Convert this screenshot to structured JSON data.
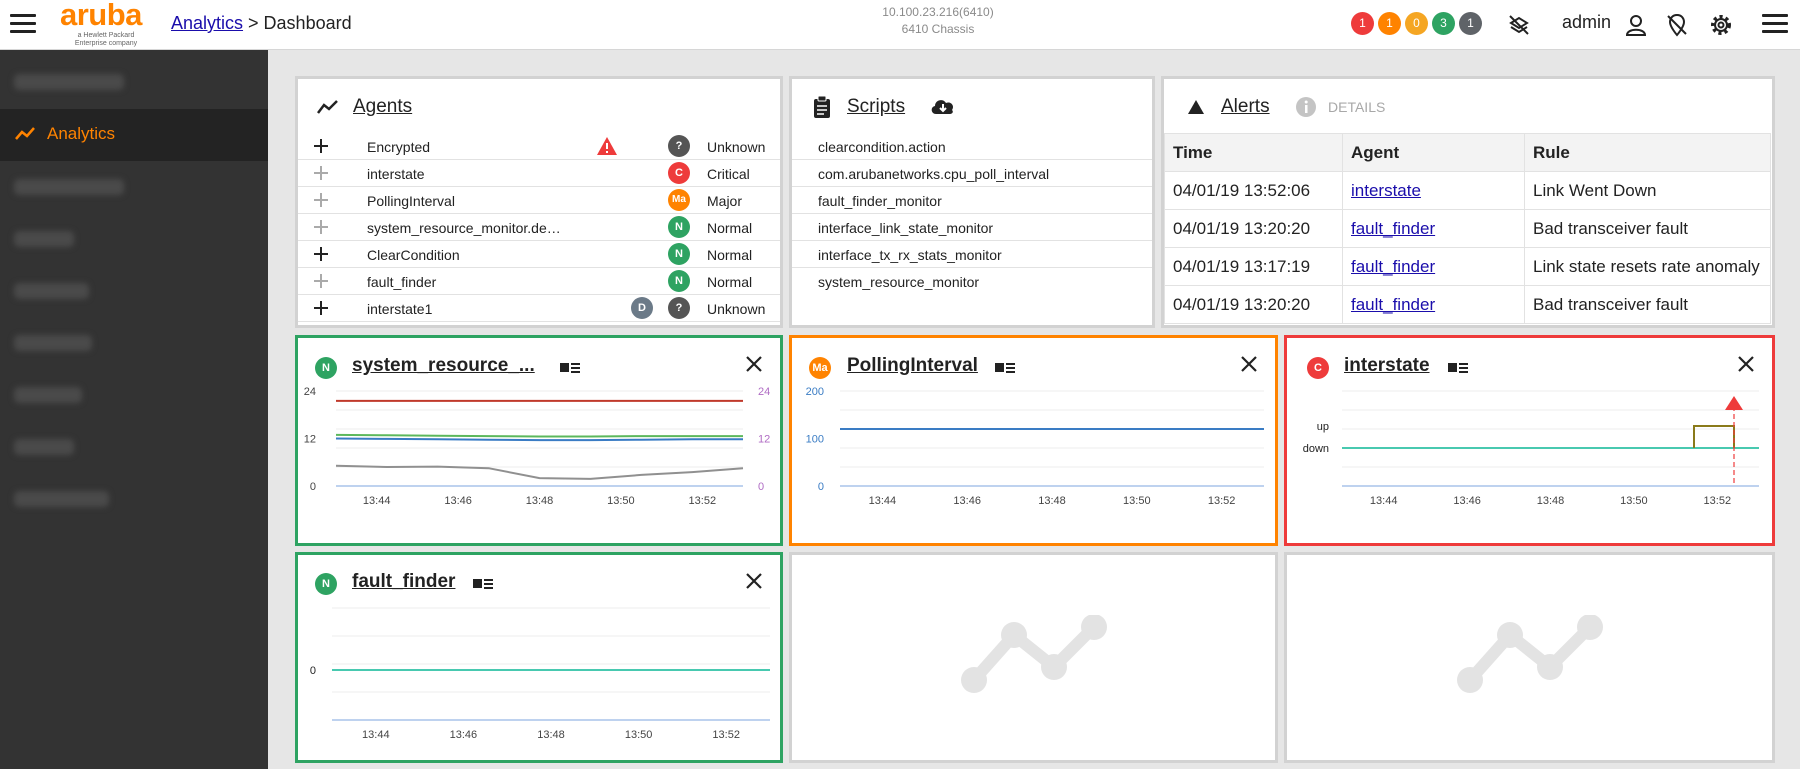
{
  "topbar": {
    "logo": {
      "word": "aruba",
      "sub1": "a Hewlett Packard",
      "sub2": "Enterprise company"
    },
    "breadcrumb": {
      "link": "Analytics",
      "separator": " > ",
      "current": "Dashboard"
    },
    "device": {
      "ip": "10.100.23.216(6410)",
      "chassis": "6410 Chassis"
    },
    "badges": [
      {
        "count": "1",
        "color": "#ee3b3b"
      },
      {
        "count": "1",
        "color": "#ff8300"
      },
      {
        "count": "0",
        "color": "#f5a623"
      },
      {
        "count": "3",
        "color": "#2ea362"
      },
      {
        "count": "1",
        "color": "#5f6368"
      }
    ],
    "user": "admin"
  },
  "sidebar": {
    "active_label": "Analytics"
  },
  "agents": {
    "title": "Agents",
    "rows": [
      {
        "name": "Encrypted",
        "status": "Unknown",
        "circle": "?",
        "circle_color": "#555555",
        "warn": true,
        "extra": ""
      },
      {
        "name": "interstate",
        "status": "Critical",
        "circle": "C",
        "circle_color": "#ee3b3b",
        "warn": false,
        "extra": ""
      },
      {
        "name": "PollingInterval",
        "status": "Major",
        "circle": "Ma",
        "circle_color": "#ff8300",
        "warn": false,
        "extra": ""
      },
      {
        "name": "system_resource_monitor.de…",
        "status": "Normal",
        "circle": "N",
        "circle_color": "#2ea362",
        "warn": false,
        "extra": ""
      },
      {
        "name": "ClearCondition",
        "status": "Normal",
        "circle": "N",
        "circle_color": "#2ea362",
        "warn": false,
        "extra": ""
      },
      {
        "name": "fault_finder",
        "status": "Normal",
        "circle": "N",
        "circle_color": "#2ea362",
        "warn": false,
        "extra": ""
      },
      {
        "name": "interstate1",
        "status": "Unknown",
        "circle": "?",
        "circle_color": "#555555",
        "warn": false,
        "extra": "D"
      }
    ]
  },
  "scripts": {
    "title": "Scripts",
    "items": [
      "clearcondition.action",
      "com.arubanetworks.cpu_poll_interval",
      "fault_finder_monitor",
      "interface_link_state_monitor",
      "interface_tx_rx_stats_monitor",
      "system_resource_monitor"
    ]
  },
  "alerts": {
    "title": "Alerts",
    "details_label": "DETAILS",
    "columns": [
      "Time",
      "Agent",
      "Rule"
    ],
    "rows": [
      [
        "04/01/19 13:52:06",
        "interstate",
        "Link Went Down"
      ],
      [
        "04/01/19 13:20:20",
        "fault_finder",
        "Bad transceiver fault"
      ],
      [
        "04/01/19 13:17:19",
        "fault_finder",
        "Link state resets rate anomaly"
      ],
      [
        "04/01/19 13:20:20",
        "fault_finder",
        "Bad transceiver fault"
      ]
    ]
  },
  "chart_data": [
    {
      "type": "line",
      "title": "system_resource_...",
      "status": "N",
      "x_ticks": [
        "13:44",
        "13:46",
        "13:48",
        "13:50",
        "13:52"
      ],
      "y_ticks_left": [
        "24",
        "12",
        "0"
      ],
      "y_ticks_right": [
        "24",
        "12",
        "0"
      ],
      "ylim": [
        0,
        24
      ],
      "series": [
        {
          "color": "#c0392b",
          "values": [
            21.5,
            21.5,
            21.5,
            21.5,
            21.5,
            21.5,
            21.5,
            21.5,
            21.5
          ]
        },
        {
          "color": "#5cb85c",
          "values": [
            12.9,
            12.8,
            12.7,
            12.6,
            12.5,
            12.5,
            12.6,
            12.6,
            12.6
          ]
        },
        {
          "color": "#3a7cc4",
          "values": [
            12.0,
            11.9,
            11.8,
            11.7,
            11.6,
            11.6,
            11.7,
            11.8,
            11.8
          ]
        },
        {
          "color": "#909090",
          "values": [
            5.1,
            4.8,
            4.9,
            4.5,
            2.0,
            1.8,
            2.8,
            3.5,
            4.5
          ]
        }
      ]
    },
    {
      "type": "line",
      "title": "PollingInterval",
      "status": "Ma",
      "x_ticks": [
        "13:44",
        "13:46",
        "13:48",
        "13:50",
        "13:52"
      ],
      "y_ticks_left": [
        "200",
        "100",
        "0"
      ],
      "ylim": [
        0,
        200
      ],
      "series": [
        {
          "color": "#3a7cc4",
          "values": [
            120,
            120,
            120,
            120,
            120,
            120,
            120,
            120,
            120
          ]
        }
      ]
    },
    {
      "type": "line",
      "title": "interstate",
      "status": "C",
      "x_ticks": [
        "13:44",
        "13:46",
        "13:48",
        "13:50",
        "13:52"
      ],
      "y_ticks_left": [
        "up",
        "down"
      ],
      "series": [
        {
          "color": "#48c9b0",
          "values": [
            "down",
            "down",
            "down",
            "down",
            "down",
            "down",
            "down",
            "down",
            "down"
          ]
        },
        {
          "color": "#8a7a1a",
          "values": [
            "down",
            "up",
            "up",
            "down"
          ]
        }
      ]
    },
    {
      "type": "line",
      "title": "fault_finder",
      "status": "N",
      "x_ticks": [
        "13:44",
        "13:46",
        "13:48",
        "13:50",
        "13:52"
      ],
      "y_ticks_left": [
        "0"
      ],
      "series": [
        {
          "color": "#48c9b0",
          "values": [
            0,
            0,
            0,
            0,
            0,
            0,
            0,
            0,
            0
          ]
        }
      ]
    }
  ],
  "colors": {
    "accent": "#ff8300",
    "normal": "#2ea362",
    "critical": "#ee3b3b",
    "major": "#ff8300"
  }
}
